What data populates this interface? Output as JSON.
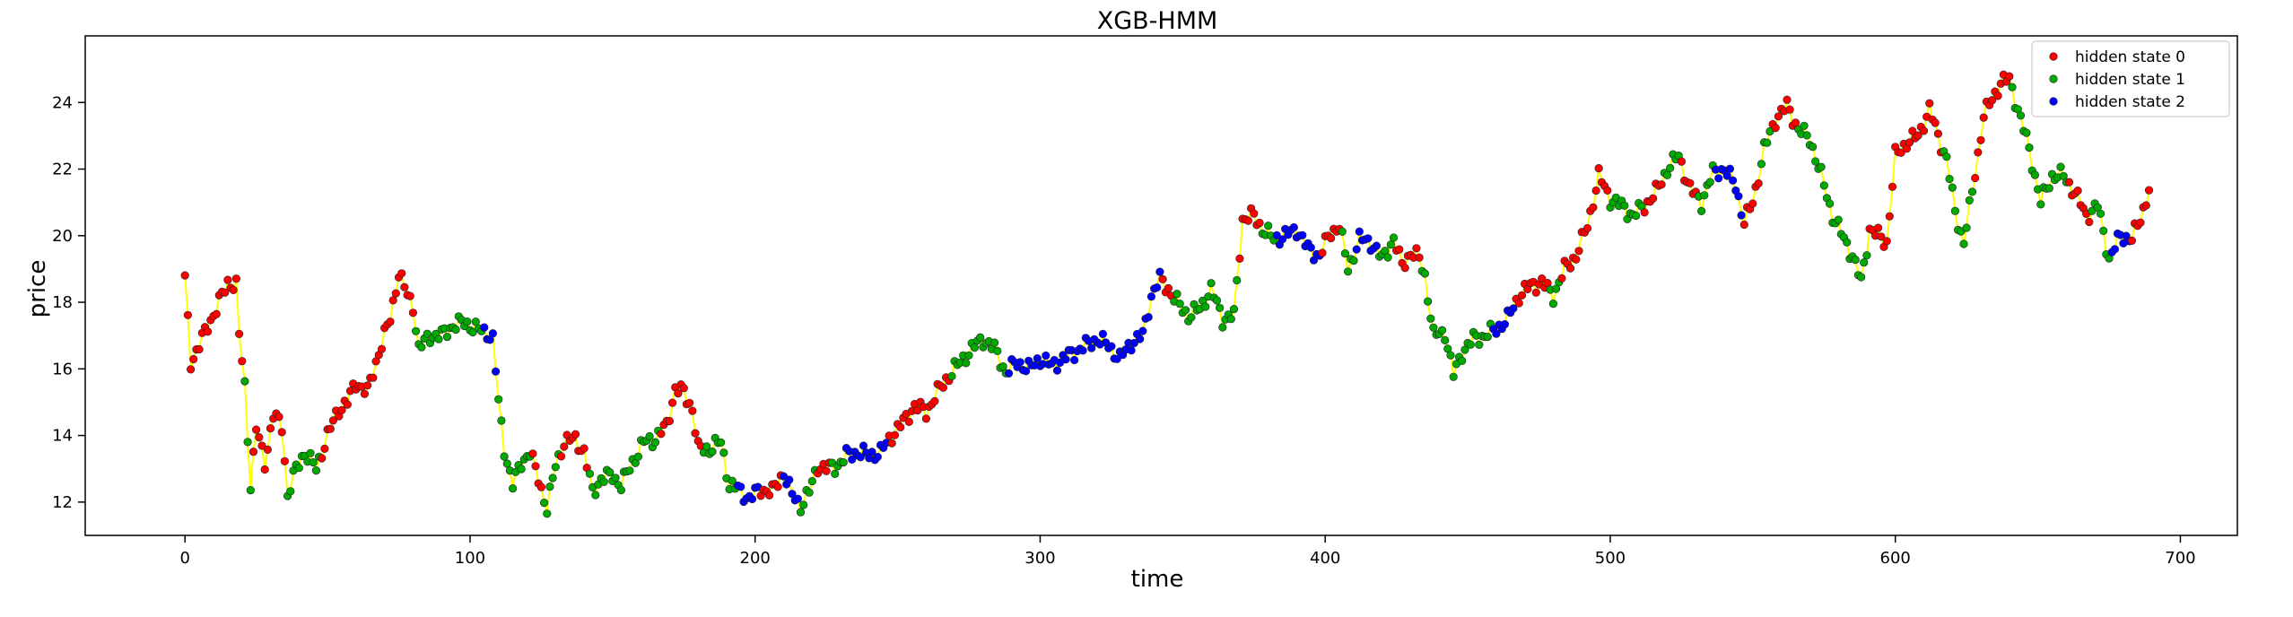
{
  "chart_data": {
    "type": "scatter",
    "title": "XGB-HMM",
    "xlabel": "time",
    "ylabel": "price",
    "xlim": [
      -35,
      720
    ],
    "ylim": [
      11.0,
      26.0
    ],
    "xticks": [
      0,
      100,
      200,
      300,
      400,
      500,
      600,
      700
    ],
    "yticks": [
      12,
      14,
      16,
      18,
      20,
      22,
      24
    ],
    "grid": false,
    "legend_position": "top-right",
    "connector_color": "#ffff00",
    "series": [
      {
        "name": "hidden state 0",
        "color": "#ff0000"
      },
      {
        "name": "hidden state 1",
        "color": "#00aa00"
      },
      {
        "name": "hidden state 2",
        "color": "#0000ff"
      }
    ],
    "x": [
      0,
      689
    ],
    "anchors": [
      [
        0,
        18.7
      ],
      [
        2,
        16.2
      ],
      [
        5,
        16.7
      ],
      [
        8,
        17.3
      ],
      [
        11,
        17.8
      ],
      [
        15,
        18.6
      ],
      [
        18,
        18.5
      ],
      [
        19,
        17.0
      ],
      [
        21,
        15.5
      ],
      [
        23,
        12.5
      ],
      [
        25,
        14.2
      ],
      [
        28,
        13.2
      ],
      [
        31,
        14.6
      ],
      [
        34,
        14.3
      ],
      [
        36,
        12.2
      ],
      [
        39,
        13.0
      ],
      [
        42,
        13.5
      ],
      [
        46,
        13.0
      ],
      [
        50,
        14.0
      ],
      [
        54,
        14.8
      ],
      [
        57,
        15.0
      ],
      [
        60,
        15.6
      ],
      [
        64,
        15.3
      ],
      [
        68,
        16.5
      ],
      [
        72,
        17.5
      ],
      [
        75,
        18.9
      ],
      [
        78,
        18.2
      ],
      [
        80,
        17.9
      ],
      [
        82,
        16.6
      ],
      [
        86,
        17.0
      ],
      [
        90,
        17.0
      ],
      [
        94,
        17.3
      ],
      [
        98,
        17.4
      ],
      [
        102,
        17.2
      ],
      [
        106,
        17.1
      ],
      [
        108,
        16.9
      ],
      [
        110,
        15.0
      ],
      [
        112,
        13.6
      ],
      [
        115,
        12.5
      ],
      [
        118,
        13.2
      ],
      [
        121,
        13.5
      ],
      [
        124,
        12.7
      ],
      [
        127,
        11.8
      ],
      [
        130,
        13.1
      ],
      [
        133,
        13.8
      ],
      [
        137,
        13.9
      ],
      [
        140,
        13.5
      ],
      [
        143,
        12.3
      ],
      [
        146,
        12.7
      ],
      [
        150,
        12.8
      ],
      [
        153,
        12.5
      ],
      [
        157,
        13.2
      ],
      [
        161,
        13.8
      ],
      [
        165,
        13.9
      ],
      [
        169,
        14.3
      ],
      [
        172,
        15.4
      ],
      [
        175,
        15.3
      ],
      [
        178,
        14.8
      ],
      [
        180,
        13.6
      ],
      [
        184,
        13.6
      ],
      [
        188,
        13.8
      ],
      [
        191,
        12.5
      ],
      [
        194,
        12.4
      ],
      [
        198,
        12.1
      ],
      [
        202,
        12.4
      ],
      [
        206,
        12.3
      ],
      [
        210,
        12.9
      ],
      [
        213,
        12.2
      ],
      [
        216,
        11.9
      ],
      [
        219,
        12.3
      ],
      [
        222,
        13.1
      ],
      [
        225,
        13.0
      ],
      [
        229,
        13.1
      ],
      [
        232,
        13.4
      ],
      [
        236,
        13.5
      ],
      [
        240,
        13.4
      ],
      [
        244,
        13.5
      ],
      [
        248,
        14.0
      ],
      [
        252,
        14.4
      ],
      [
        256,
        14.9
      ],
      [
        260,
        14.7
      ],
      [
        264,
        15.3
      ],
      [
        268,
        15.8
      ],
      [
        272,
        16.2
      ],
      [
        276,
        16.6
      ],
      [
        280,
        16.9
      ],
      [
        284,
        16.6
      ],
      [
        288,
        15.9
      ],
      [
        292,
        16.2
      ],
      [
        296,
        16.0
      ],
      [
        300,
        16.3
      ],
      [
        304,
        16.1
      ],
      [
        308,
        16.3
      ],
      [
        312,
        16.5
      ],
      [
        316,
        16.7
      ],
      [
        320,
        16.9
      ],
      [
        324,
        16.7
      ],
      [
        328,
        16.3
      ],
      [
        332,
        16.8
      ],
      [
        336,
        17.0
      ],
      [
        339,
        18.2
      ],
      [
        342,
        18.7
      ],
      [
        345,
        18.4
      ],
      [
        348,
        18.0
      ],
      [
        352,
        17.6
      ],
      [
        356,
        17.8
      ],
      [
        360,
        18.4
      ],
      [
        364,
        17.5
      ],
      [
        368,
        17.6
      ],
      [
        371,
        20.5
      ],
      [
        375,
        20.6
      ],
      [
        378,
        20.2
      ],
      [
        382,
        19.9
      ],
      [
        386,
        20.0
      ],
      [
        390,
        20.2
      ],
      [
        394,
        19.6
      ],
      [
        398,
        19.4
      ],
      [
        402,
        20.1
      ],
      [
        405,
        20.3
      ],
      [
        408,
        19.0
      ],
      [
        412,
        19.9
      ],
      [
        416,
        19.8
      ],
      [
        420,
        19.3
      ],
      [
        424,
        19.9
      ],
      [
        427,
        19.1
      ],
      [
        430,
        19.5
      ],
      [
        433,
        19.3
      ],
      [
        435,
        18.8
      ],
      [
        438,
        17.0
      ],
      [
        442,
        17.1
      ],
      [
        445,
        15.8
      ],
      [
        448,
        16.5
      ],
      [
        452,
        16.9
      ],
      [
        456,
        17.0
      ],
      [
        460,
        17.2
      ],
      [
        464,
        17.5
      ],
      [
        468,
        18.2
      ],
      [
        472,
        18.5
      ],
      [
        476,
        18.6
      ],
      [
        480,
        18.2
      ],
      [
        484,
        19.0
      ],
      [
        488,
        19.4
      ],
      [
        492,
        20.3
      ],
      [
        496,
        21.8
      ],
      [
        500,
        21.1
      ],
      [
        504,
        20.9
      ],
      [
        508,
        20.6
      ],
      [
        512,
        20.9
      ],
      [
        516,
        21.3
      ],
      [
        520,
        22.0
      ],
      [
        524,
        22.4
      ],
      [
        528,
        21.4
      ],
      [
        532,
        21.0
      ],
      [
        536,
        21.9
      ],
      [
        540,
        22.0
      ],
      [
        544,
        21.5
      ],
      [
        547,
        20.4
      ],
      [
        550,
        21.0
      ],
      [
        554,
        22.6
      ],
      [
        558,
        23.5
      ],
      [
        562,
        23.9
      ],
      [
        566,
        23.2
      ],
      [
        570,
        22.9
      ],
      [
        574,
        21.8
      ],
      [
        578,
        20.6
      ],
      [
        582,
        19.9
      ],
      [
        585,
        19.4
      ],
      [
        588,
        18.6
      ],
      [
        591,
        20.2
      ],
      [
        594,
        20.0
      ],
      [
        597,
        19.8
      ],
      [
        600,
        22.4
      ],
      [
        604,
        22.8
      ],
      [
        608,
        23.0
      ],
      [
        612,
        23.8
      ],
      [
        615,
        23.0
      ],
      [
        618,
        22.3
      ],
      [
        621,
        20.7
      ],
      [
        624,
        19.8
      ],
      [
        627,
        21.3
      ],
      [
        631,
        23.6
      ],
      [
        634,
        24.1
      ],
      [
        637,
        24.6
      ],
      [
        640,
        24.7
      ],
      [
        643,
        23.8
      ],
      [
        647,
        22.6
      ],
      [
        651,
        21.0
      ],
      [
        655,
        21.8
      ],
      [
        659,
        21.8
      ],
      [
        663,
        21.3
      ],
      [
        667,
        20.6
      ],
      [
        671,
        20.9
      ],
      [
        675,
        19.3
      ],
      [
        679,
        20.0
      ],
      [
        683,
        19.9
      ],
      [
        686,
        20.5
      ],
      [
        689,
        21.4
      ]
    ],
    "state_segments": [
      [
        0,
        20,
        0
      ],
      [
        21,
        23,
        1
      ],
      [
        24,
        35,
        0
      ],
      [
        36,
        47,
        1
      ],
      [
        48,
        80,
        0
      ],
      [
        81,
        104,
        1
      ],
      [
        105,
        109,
        2
      ],
      [
        110,
        121,
        1
      ],
      [
        122,
        125,
        0
      ],
      [
        126,
        131,
        1
      ],
      [
        132,
        141,
        0
      ],
      [
        142,
        166,
        1
      ],
      [
        167,
        181,
        0
      ],
      [
        182,
        193,
        1
      ],
      [
        194,
        201,
        2
      ],
      [
        202,
        209,
        0
      ],
      [
        210,
        215,
        2
      ],
      [
        216,
        221,
        1
      ],
      [
        222,
        226,
        0
      ],
      [
        227,
        231,
        1
      ],
      [
        232,
        246,
        2
      ],
      [
        247,
        268,
        0
      ],
      [
        269,
        288,
        1
      ],
      [
        289,
        342,
        2
      ],
      [
        343,
        346,
        0
      ],
      [
        347,
        369,
        1
      ],
      [
        370,
        377,
        0
      ],
      [
        378,
        382,
        1
      ],
      [
        383,
        398,
        2
      ],
      [
        399,
        405,
        0
      ],
      [
        406,
        410,
        1
      ],
      [
        411,
        418,
        2
      ],
      [
        419,
        424,
        1
      ],
      [
        425,
        433,
        0
      ],
      [
        434,
        436,
        1
      ],
      [
        437,
        444,
        1
      ],
      [
        445,
        458,
        1
      ],
      [
        459,
        466,
        2
      ],
      [
        467,
        478,
        0
      ],
      [
        479,
        482,
        1
      ],
      [
        483,
        499,
        0
      ],
      [
        500,
        511,
        1
      ],
      [
        512,
        518,
        0
      ],
      [
        519,
        524,
        1
      ],
      [
        525,
        530,
        0
      ],
      [
        531,
        536,
        1
      ],
      [
        537,
        546,
        2
      ],
      [
        547,
        552,
        0
      ],
      [
        553,
        556,
        1
      ],
      [
        557,
        565,
        0
      ],
      [
        566,
        572,
        1
      ],
      [
        573,
        582,
        1
      ],
      [
        583,
        590,
        1
      ],
      [
        591,
        597,
        0
      ],
      [
        598,
        616,
        0
      ],
      [
        617,
        627,
        1
      ],
      [
        628,
        640,
        0
      ],
      [
        641,
        650,
        1
      ],
      [
        651,
        660,
        1
      ],
      [
        661,
        668,
        0
      ],
      [
        669,
        675,
        1
      ],
      [
        676,
        682,
        2
      ],
      [
        683,
        689,
        0
      ]
    ]
  }
}
